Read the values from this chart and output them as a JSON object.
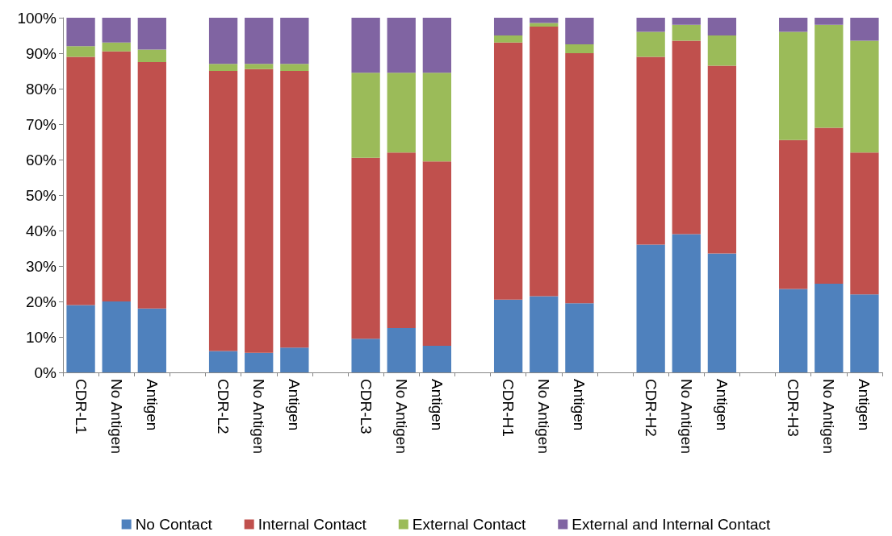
{
  "chart_data": {
    "type": "bar",
    "stacked": true,
    "categories": [
      "CDR-L1",
      "No Antigen",
      "Antigen",
      null,
      "CDR-L2",
      "No Antigen",
      "Antigen",
      null,
      "CDR-L3",
      "No Antigen",
      "Antigen",
      null,
      "CDR-H1",
      "No Antigen",
      "Antigen",
      null,
      "CDR-H2",
      "No Antigen",
      "Antigen",
      null,
      "CDR-H3",
      "No Antigen",
      "Antigen"
    ],
    "series": [
      {
        "name": "No Contact",
        "color": "#4f81bd",
        "values": [
          19,
          20,
          18,
          null,
          6,
          5.5,
          7,
          null,
          9.5,
          12.5,
          7.5,
          null,
          20.5,
          21.5,
          19.5,
          null,
          36,
          39,
          33.5,
          null,
          23.5,
          25,
          22
        ]
      },
      {
        "name": "Internal Contact",
        "color": "#c0504d",
        "values": [
          70,
          70.5,
          69.5,
          null,
          79,
          80,
          78,
          null,
          51,
          49.5,
          52,
          null,
          72.5,
          76,
          70.5,
          null,
          53,
          54.5,
          53,
          null,
          42,
          44,
          40
        ]
      },
      {
        "name": "External Contact",
        "color": "#9bbb59",
        "values": [
          3,
          2.5,
          3.5,
          null,
          2,
          1.5,
          2,
          null,
          24,
          22.5,
          25,
          null,
          2,
          1,
          2.5,
          null,
          7,
          4.5,
          8.5,
          null,
          30.5,
          29,
          31.5
        ]
      },
      {
        "name": "External and Internal Contact",
        "color": "#8064a2",
        "values": [
          8,
          7,
          9,
          null,
          13,
          13,
          13,
          null,
          15.5,
          15.5,
          15.5,
          null,
          5,
          1.5,
          7.5,
          null,
          4,
          2,
          5,
          null,
          4,
          2,
          6.5
        ]
      }
    ],
    "ylim": [
      0,
      100
    ],
    "yticks": [
      {
        "value": 0,
        "label": "0%"
      },
      {
        "value": 10,
        "label": "10%"
      },
      {
        "value": 20,
        "label": "20%"
      },
      {
        "value": 30,
        "label": "30%"
      },
      {
        "value": 40,
        "label": "40%"
      },
      {
        "value": 50,
        "label": "50%"
      },
      {
        "value": 60,
        "label": "60%"
      },
      {
        "value": 70,
        "label": "70%"
      },
      {
        "value": 80,
        "label": "80%"
      },
      {
        "value": 90,
        "label": "90%"
      },
      {
        "value": 100,
        "label": "100%"
      }
    ],
    "grid": false,
    "legend": "bottom"
  }
}
